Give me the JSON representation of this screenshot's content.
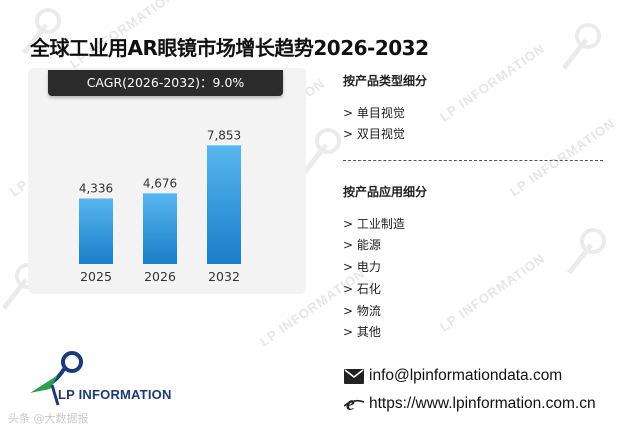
{
  "title": "全球工业用AR眼镜市场增长趋势2026-2032",
  "cagr_label": "CAGR(2026-2032)：9.0%",
  "chart_data": {
    "type": "bar",
    "categories": [
      "2025",
      "2026",
      "2032"
    ],
    "values": [
      4336,
      4676,
      7853
    ],
    "value_labels": [
      "4,336",
      "4,676",
      "7,853"
    ],
    "ylim": [
      0,
      9000
    ],
    "grid": false,
    "bar_color_top": "#57b6f0",
    "bar_color_bottom": "#1a7ec9"
  },
  "segments": {
    "product_type": {
      "heading": "按产品类型细分",
      "items": [
        "> 单目视觉",
        "> 双目视觉"
      ]
    },
    "application": {
      "heading": "按产品应用细分",
      "items": [
        "> 工业制造",
        "> 能源",
        "> 电力",
        "> 石化",
        "> 物流",
        "> 其他"
      ]
    }
  },
  "contact": {
    "email": "info@lpinformationdata.com",
    "website": "https://www.lpinformation.com.cn"
  },
  "logo": {
    "text": "LP INFORMATION"
  },
  "watermark": {
    "text": "LP INFORMATION"
  },
  "bottom_mark": "头条 @大数据报",
  "colors": {
    "logo_blue": "#1b3a7a",
    "logo_green": "#2aa14a",
    "cagr_bg": "#2b2b2b"
  }
}
